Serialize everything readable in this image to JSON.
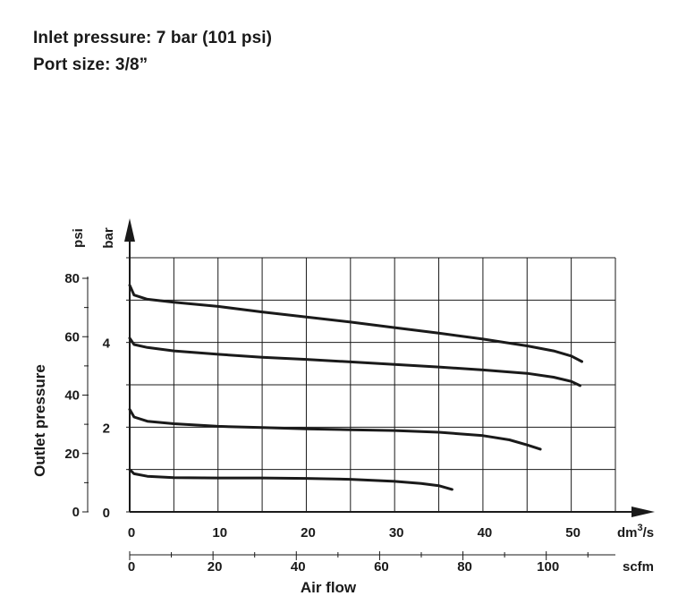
{
  "header": {
    "line1": "Inlet pressure: 7 bar (101 psi)",
    "line2": "Port size: 3/8”"
  },
  "chart_data": {
    "type": "line",
    "title": "",
    "xlabel": "Air flow",
    "ylabel": "Outlet pressure",
    "grid": true,
    "x_axis_primary": {
      "unit_label": "dm³/s",
      "unit_base": "dm",
      "unit_sup": "3",
      "unit_tail": "/s",
      "range": [
        0,
        55
      ],
      "ticks": [
        0,
        10,
        20,
        30,
        40,
        50
      ]
    },
    "x_axis_secondary": {
      "unit_label": "scfm",
      "range": [
        0,
        116.6
      ],
      "ticks": [
        0,
        20,
        40,
        60,
        80,
        100
      ]
    },
    "y_axis_left": {
      "unit_label": "psi",
      "range": [
        0,
        80
      ],
      "ticks": [
        0,
        20,
        40,
        60,
        80
      ]
    },
    "y_axis_right": {
      "unit_label": "bar",
      "range": [
        0,
        6
      ],
      "ticks": [
        0,
        2,
        4
      ]
    },
    "series": [
      {
        "x": [
          0,
          0.5,
          2,
          5,
          10,
          15,
          20,
          25,
          30,
          35,
          40,
          45,
          48,
          50,
          51.2
        ],
        "y": [
          5.35,
          5.12,
          5.02,
          4.95,
          4.85,
          4.72,
          4.6,
          4.48,
          4.35,
          4.22,
          4.08,
          3.92,
          3.8,
          3.68,
          3.55
        ]
      },
      {
        "x": [
          0,
          0.5,
          2,
          5,
          10,
          15,
          20,
          25,
          30,
          35,
          40,
          45,
          48,
          50,
          51
        ],
        "y": [
          4.1,
          3.95,
          3.88,
          3.8,
          3.72,
          3.65,
          3.6,
          3.54,
          3.48,
          3.42,
          3.35,
          3.27,
          3.18,
          3.08,
          2.98
        ]
      },
      {
        "x": [
          0,
          0.5,
          2,
          5,
          10,
          15,
          20,
          25,
          30,
          35,
          40,
          43,
          45,
          46.5
        ],
        "y": [
          2.42,
          2.24,
          2.14,
          2.08,
          2.02,
          1.99,
          1.96,
          1.94,
          1.92,
          1.88,
          1.8,
          1.7,
          1.58,
          1.48
        ]
      },
      {
        "x": [
          0,
          0.5,
          2,
          5,
          10,
          15,
          20,
          25,
          30,
          33,
          35,
          36.5
        ],
        "y": [
          1.0,
          0.9,
          0.84,
          0.81,
          0.8,
          0.8,
          0.79,
          0.77,
          0.72,
          0.67,
          0.62,
          0.53
        ]
      }
    ]
  }
}
